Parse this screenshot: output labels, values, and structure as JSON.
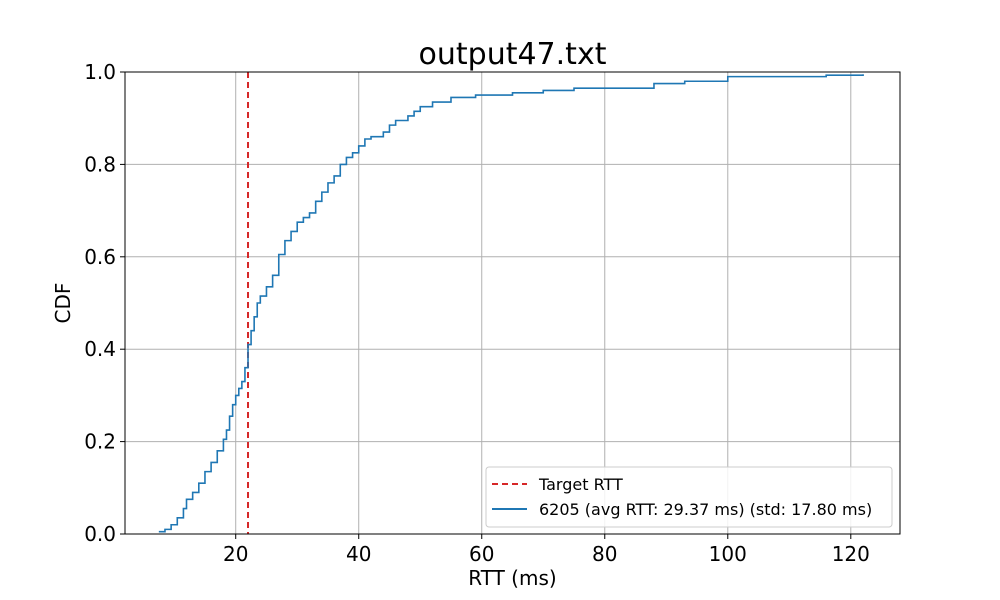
{
  "chart_data": {
    "type": "line",
    "title": "output47.txt",
    "xlabel": "RTT (ms)",
    "ylabel": "CDF",
    "xlim": [
      2,
      128
    ],
    "ylim": [
      0,
      1
    ],
    "xticks": [
      20,
      40,
      60,
      80,
      100,
      120
    ],
    "yticks": [
      0.0,
      0.2,
      0.4,
      0.6,
      0.8,
      1.0
    ],
    "xtick_labels": [
      "20",
      "40",
      "60",
      "80",
      "100",
      "120"
    ],
    "ytick_labels": [
      "0.0",
      "0.2",
      "0.4",
      "0.6",
      "0.8",
      "1.0"
    ],
    "grid": true,
    "legend_position": "bottom-right",
    "target_rtt": 22,
    "series": [
      {
        "name": "Target RTT",
        "kind": "vline",
        "x": 22,
        "color": "#d62728",
        "dash": true
      },
      {
        "name": "6205 (avg RTT: 29.37 ms) (std: 17.80 ms)",
        "kind": "step",
        "color": "#1f77b4",
        "points": [
          [
            7.5,
            0.005
          ],
          [
            8.5,
            0.01
          ],
          [
            9.5,
            0.02
          ],
          [
            10.5,
            0.035
          ],
          [
            11.5,
            0.055
          ],
          [
            12.0,
            0.075
          ],
          [
            13.0,
            0.09
          ],
          [
            14.0,
            0.11
          ],
          [
            15.0,
            0.135
          ],
          [
            16.0,
            0.155
          ],
          [
            17.0,
            0.18
          ],
          [
            18.0,
            0.205
          ],
          [
            18.5,
            0.225
          ],
          [
            19.0,
            0.255
          ],
          [
            19.5,
            0.28
          ],
          [
            20.0,
            0.3
          ],
          [
            20.5,
            0.315
          ],
          [
            21.0,
            0.33
          ],
          [
            21.5,
            0.36
          ],
          [
            22.0,
            0.41
          ],
          [
            22.5,
            0.44
          ],
          [
            23.0,
            0.47
          ],
          [
            23.5,
            0.5
          ],
          [
            24.0,
            0.515
          ],
          [
            25.0,
            0.535
          ],
          [
            26.0,
            0.56
          ],
          [
            27.0,
            0.605
          ],
          [
            28.0,
            0.635
          ],
          [
            29.0,
            0.655
          ],
          [
            30.0,
            0.675
          ],
          [
            31.0,
            0.685
          ],
          [
            32.0,
            0.695
          ],
          [
            33.0,
            0.72
          ],
          [
            34.0,
            0.74
          ],
          [
            35.0,
            0.76
          ],
          [
            36.0,
            0.775
          ],
          [
            37.0,
            0.8
          ],
          [
            38.0,
            0.815
          ],
          [
            39.0,
            0.825
          ],
          [
            40.0,
            0.84
          ],
          [
            41.0,
            0.855
          ],
          [
            42.0,
            0.86
          ],
          [
            44.0,
            0.87
          ],
          [
            45.0,
            0.885
          ],
          [
            46.0,
            0.895
          ],
          [
            48.0,
            0.905
          ],
          [
            49.0,
            0.915
          ],
          [
            50.0,
            0.925
          ],
          [
            52.0,
            0.935
          ],
          [
            55.0,
            0.945
          ],
          [
            59.0,
            0.95
          ],
          [
            65.0,
            0.955
          ],
          [
            70.0,
            0.96
          ],
          [
            75.0,
            0.965
          ],
          [
            88.0,
            0.975
          ],
          [
            93.0,
            0.98
          ],
          [
            100.0,
            0.99
          ],
          [
            116.0,
            0.993
          ],
          [
            122.0,
            0.995
          ]
        ]
      }
    ]
  }
}
